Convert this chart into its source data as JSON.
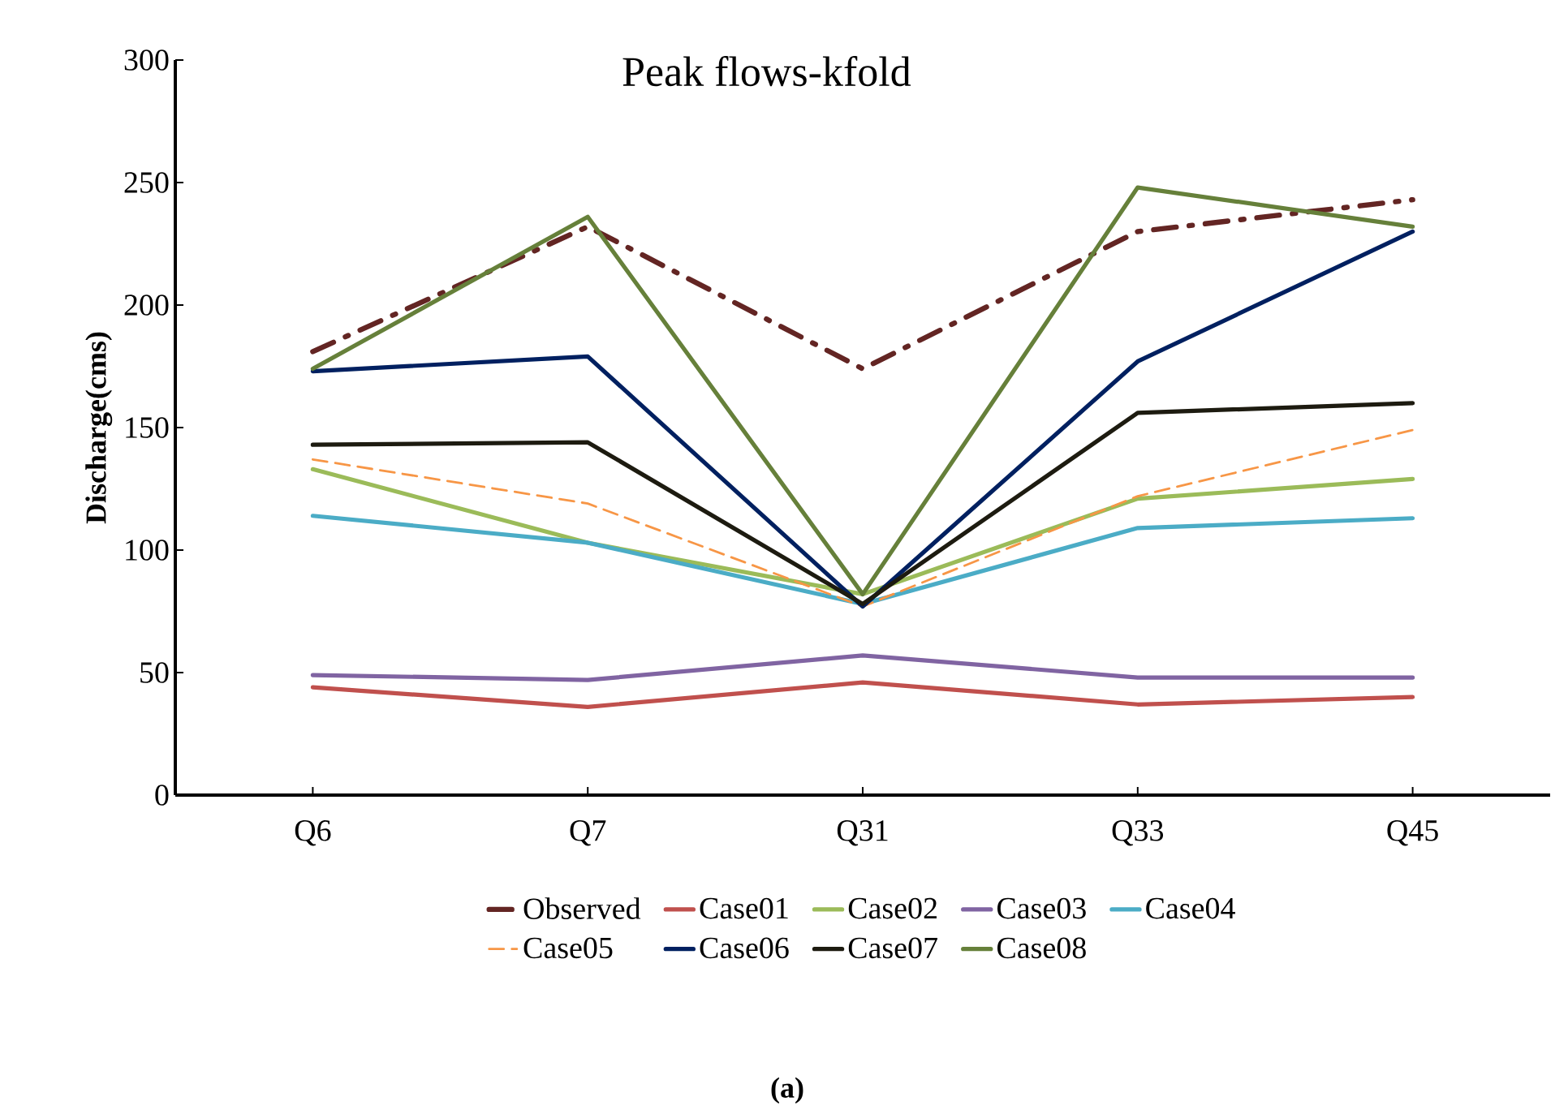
{
  "chart_data": {
    "type": "line",
    "title": "Peak flows-kfold",
    "ylabel": "Discharge(cms)",
    "categories": [
      "Q6",
      "Q7",
      "Q31",
      "Q33",
      "Q45"
    ],
    "series": [
      {
        "name": "Observed",
        "color": "#632523",
        "line_style": "dashdot",
        "values": [
          181,
          232,
          174,
          230,
          243
        ]
      },
      {
        "name": "Case01",
        "color": "#c0504d",
        "values": [
          44,
          36,
          46,
          37,
          40
        ]
      },
      {
        "name": "Case02",
        "color": "#9bbb59",
        "values": [
          133,
          103,
          82,
          121,
          129
        ]
      },
      {
        "name": "Case03",
        "color": "#8064a2",
        "values": [
          49,
          47,
          57,
          48,
          48
        ]
      },
      {
        "name": "Case04",
        "color": "#4bacc6",
        "values": [
          114,
          103,
          78,
          109,
          113
        ]
      },
      {
        "name": "Case05",
        "color": "#f79646",
        "line_style": "dashed",
        "values": [
          137,
          119,
          77,
          122,
          149
        ]
      },
      {
        "name": "Case06",
        "color": "#002060",
        "values": [
          173,
          179,
          77,
          177,
          230
        ]
      },
      {
        "name": "Case07",
        "color": "#1d1b10",
        "values": [
          143,
          144,
          78,
          156,
          160
        ]
      },
      {
        "name": "Case08",
        "color": "#66803a",
        "values": [
          174,
          236,
          82,
          248,
          232
        ]
      }
    ],
    "ylim": [
      0,
      300
    ],
    "yticks": [
      0,
      50,
      100,
      150,
      200,
      250,
      300
    ],
    "grid": false,
    "legend": "bottom",
    "marker": "none",
    "annotations": [
      "(a)"
    ]
  }
}
